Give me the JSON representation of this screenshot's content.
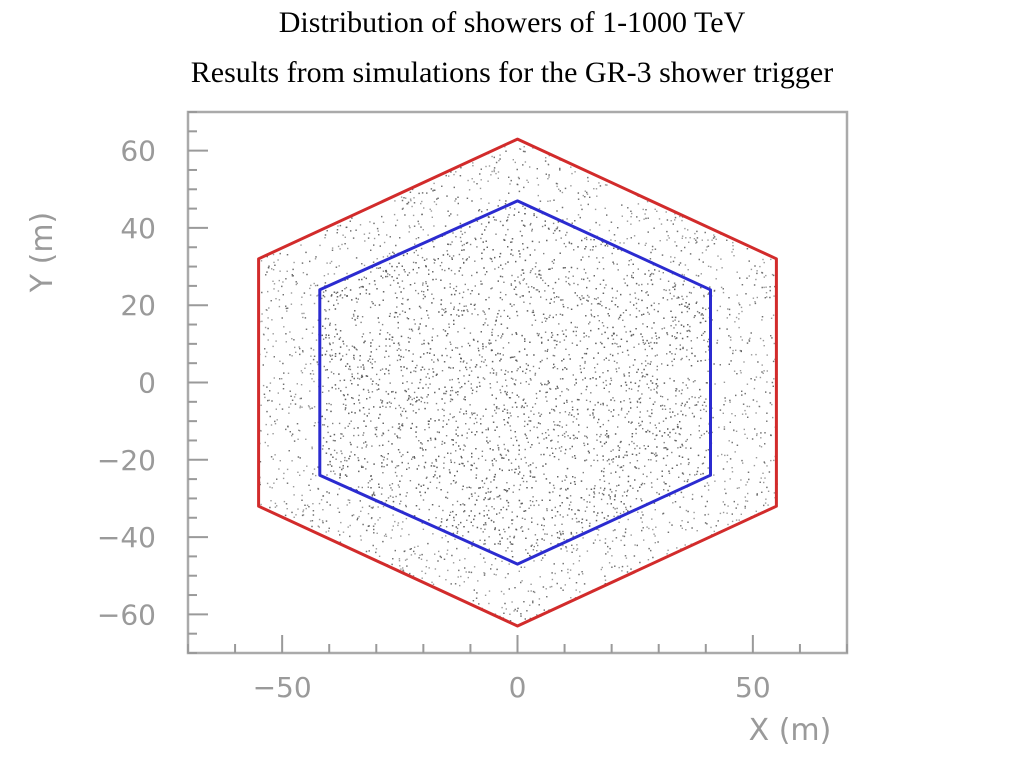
{
  "page": {
    "title_line_1": "Distribution of showers of 1-1000 TeV",
    "title_line_2": "Results from simulations for the GR-3 shower trigger"
  },
  "chart_data": {
    "type": "scatter",
    "title": "Distribution of showers of 1-1000 TeV",
    "subtitle": "Results from simulations for the GR-3 shower trigger",
    "xlabel": "X (m)",
    "ylabel": "Y (m)",
    "xlim": [
      -70,
      70
    ],
    "ylim": [
      -70,
      70
    ],
    "x_ticks": [
      -50,
      0,
      50
    ],
    "x_tick_labels": [
      "−50",
      "0",
      "50"
    ],
    "y_ticks": [
      60,
      40,
      20,
      0,
      -20,
      -40,
      -60
    ],
    "y_tick_labels": [
      "60",
      "40",
      "20",
      "0",
      "−20",
      "−40",
      "−60"
    ],
    "grid": false,
    "series": [
      {
        "kind": "shower-cores",
        "distribution": "uniform within outer hexagon",
        "approx_count": 6000,
        "color": "#555555"
      },
      {
        "kind": "outer-hexagon",
        "color": "#d22b2b",
        "vertices": [
          [
            0,
            63
          ],
          [
            55,
            32
          ],
          [
            55,
            -32
          ],
          [
            0,
            -63
          ],
          [
            -55,
            -32
          ],
          [
            -55,
            32
          ]
        ]
      },
      {
        "kind": "inner-hexagon",
        "color": "#2b2bd0",
        "vertices": [
          [
            0,
            47
          ],
          [
            41,
            24
          ],
          [
            41,
            -24
          ],
          [
            0,
            -47
          ],
          [
            -42,
            -24
          ],
          [
            -42,
            24
          ]
        ]
      }
    ]
  }
}
